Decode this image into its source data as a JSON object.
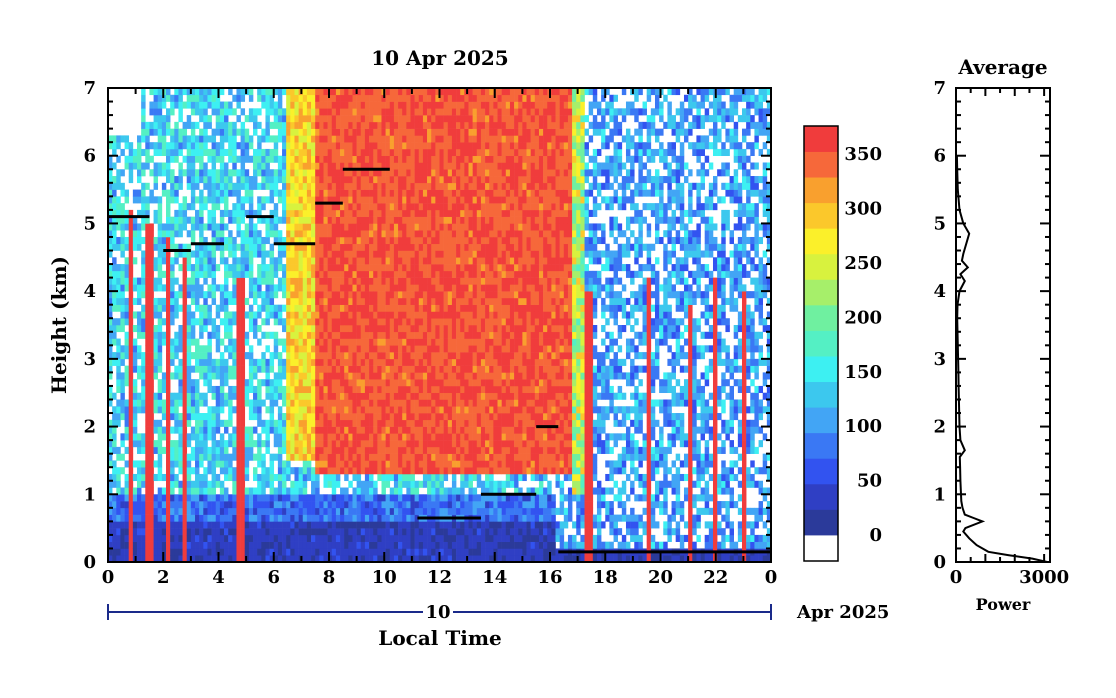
{
  "chart_data": [
    {
      "type": "heatmap",
      "title": "10 Apr 2025",
      "xlabel": "Local Time",
      "ylabel": "Height (km)",
      "xlim": [
        0,
        24
      ],
      "ylim": [
        0,
        7
      ],
      "x_ticks": [
        "0",
        "2",
        "4",
        "6",
        "8",
        "10",
        "12",
        "14",
        "16",
        "18",
        "20",
        "22",
        "0"
      ],
      "y_ticks": [
        "0",
        "1",
        "2",
        "3",
        "4",
        "5",
        "6",
        "7"
      ],
      "date_bar": {
        "day": "10",
        "month_year": "Apr 2025"
      },
      "colorbar": {
        "ticks": [
          "0",
          "50",
          "100",
          "150",
          "200",
          "250",
          "300",
          "350"
        ],
        "range": [
          0,
          380
        ],
        "colors": [
          "#2b3a9a",
          "#2f3fc4",
          "#3253f0",
          "#3a78f4",
          "#42a5f5",
          "#3cc8ee",
          "#3df0f2",
          "#54f0c4",
          "#6ff0a0",
          "#a6ef6a",
          "#d8f23e",
          "#fbf02a",
          "#fbc82b",
          "#f9a02e",
          "#f6683a",
          "#f03c3c"
        ]
      },
      "cloud_layers": [
        {
          "start": 0.0,
          "end": 1.5,
          "height": 5.1
        },
        {
          "start": 2.0,
          "end": 3.0,
          "height": 4.6
        },
        {
          "start": 3.0,
          "end": 4.2,
          "height": 4.7
        },
        {
          "start": 5.0,
          "end": 6.0,
          "height": 5.1
        },
        {
          "start": 6.0,
          "end": 7.5,
          "height": 4.7
        },
        {
          "start": 7.5,
          "end": 8.5,
          "height": 5.3
        },
        {
          "start": 8.5,
          "end": 10.2,
          "height": 5.8
        },
        {
          "start": 11.2,
          "end": 13.5,
          "height": 0.65
        },
        {
          "start": 13.5,
          "end": 15.5,
          "height": 1.0
        },
        {
          "start": 15.5,
          "end": 16.3,
          "height": 2.0
        },
        {
          "start": 16.3,
          "end": 24.0,
          "height": 0.15
        }
      ]
    },
    {
      "type": "line",
      "title": "Average",
      "xlabel": "Power",
      "x_ticks": [
        "0",
        "3000"
      ],
      "y_ticks": [
        "0",
        "1",
        "2",
        "3",
        "4",
        "5",
        "6",
        "7"
      ],
      "xlim": [
        0,
        3200
      ],
      "ylim": [
        0,
        7
      ],
      "x": [
        3100,
        2600,
        1800,
        1100,
        700,
        450,
        250,
        320,
        900,
        600,
        300,
        220,
        180,
        170,
        150,
        140,
        130,
        300,
        150,
        120,
        110,
        100,
        90,
        80,
        70,
        60,
        50,
        40,
        50,
        120,
        300,
        150,
        400,
        200,
        250,
        450,
        250,
        120,
        60,
        40,
        30
      ],
      "y": [
        0.0,
        0.05,
        0.1,
        0.15,
        0.25,
        0.35,
        0.45,
        0.5,
        0.6,
        0.65,
        0.7,
        0.8,
        0.9,
        1.0,
        1.2,
        1.4,
        1.55,
        1.65,
        1.8,
        2.0,
        2.2,
        2.4,
        2.6,
        2.8,
        3.0,
        3.2,
        3.4,
        3.6,
        3.8,
        4.0,
        4.15,
        4.25,
        4.35,
        4.45,
        4.55,
        4.85,
        5.0,
        5.2,
        5.5,
        5.8,
        6.0
      ]
    }
  ]
}
